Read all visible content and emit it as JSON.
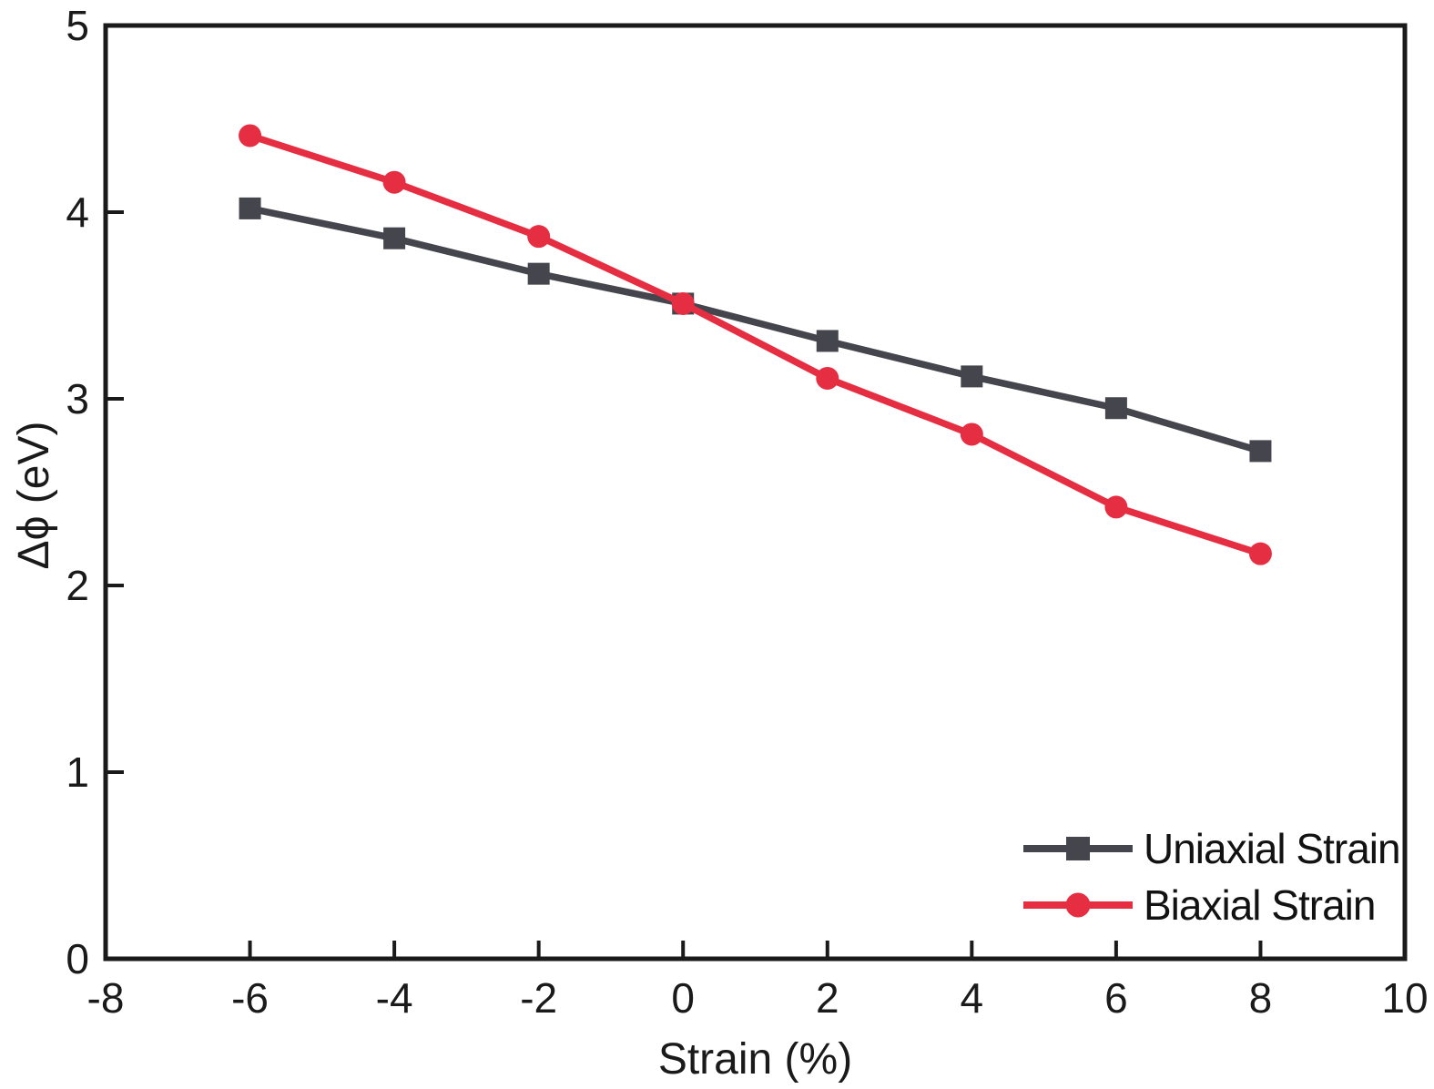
{
  "chart_data": {
    "type": "line",
    "title": "",
    "xlabel": "Strain (%)",
    "ylabel": "Δϕ (eV)",
    "x": [
      -6,
      -4,
      -2,
      0,
      2,
      4,
      6,
      8
    ],
    "series": [
      {
        "name": "Uniaxial Strain",
        "color": "#45454d",
        "marker": "square",
        "values": [
          4.02,
          3.86,
          3.67,
          3.51,
          3.31,
          3.12,
          2.95,
          2.72
        ]
      },
      {
        "name": "Biaxial Strain",
        "color": "#e62e42",
        "marker": "circle",
        "values": [
          4.41,
          4.16,
          3.87,
          3.51,
          3.11,
          2.81,
          2.42,
          2.17
        ]
      }
    ],
    "xlim": [
      -8,
      10
    ],
    "ylim": [
      0,
      5
    ],
    "x_ticks": [
      -8,
      -6,
      -4,
      -2,
      0,
      2,
      4,
      6,
      8,
      10
    ],
    "y_ticks": [
      0,
      1,
      2,
      3,
      4,
      5
    ],
    "grid": false,
    "legend_position": "bottom-right",
    "axis_color": "#1a1a1a",
    "tick_label_color": "#1a1a1a"
  }
}
